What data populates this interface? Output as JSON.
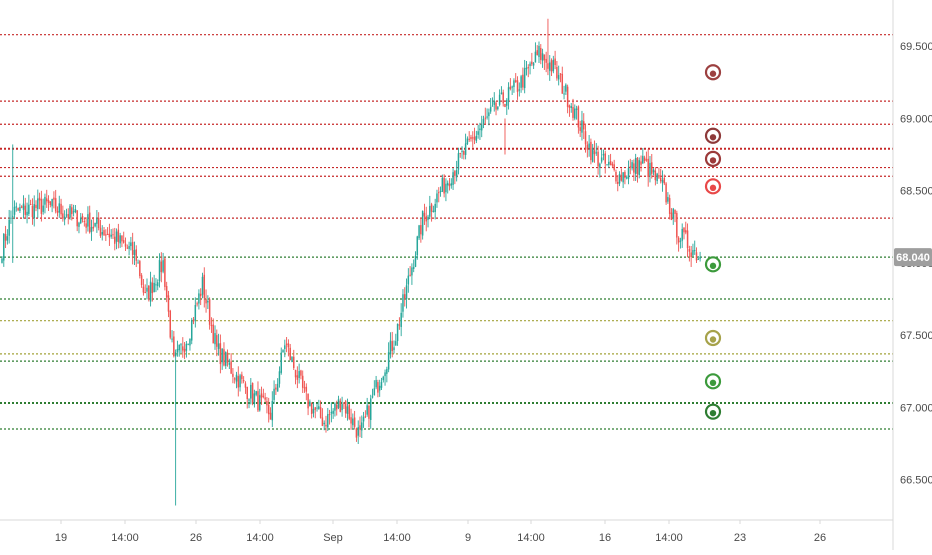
{
  "colors": {
    "up": "#26a69a",
    "up_fill": "#4caf50",
    "down": "#ef5350",
    "resistance": "#c62828",
    "support": "#2e7d32",
    "neutral": "#a3a33a",
    "price_tag_bg": "#9e9e9e",
    "axis_text": "#4a4a4a",
    "axis_line": "#d8d8d8"
  },
  "chart_data": {
    "type": "candlestick",
    "title": "",
    "xlabel": "",
    "ylabel": "",
    "ylim": [
      66.22,
      69.82
    ],
    "grid": false,
    "y_ticks": [
      "66.500",
      "67.000",
      "67.500",
      "68.000",
      "68.500",
      "69.000",
      "69.500"
    ],
    "x_ticks": [
      "19",
      "14:00",
      "26",
      "14:00",
      "Sep",
      "14:00",
      "9",
      "14:00",
      "16",
      "14:00",
      "23",
      "26"
    ],
    "current_price": "68.040",
    "anchors": [
      {
        "t": 0,
        "p": 68.1
      },
      {
        "t": 6,
        "p": 68.35
      },
      {
        "t": 25,
        "p": 68.4
      },
      {
        "t": 45,
        "p": 68.3
      },
      {
        "t": 60,
        "p": 68.2
      },
      {
        "t": 75,
        "p": 68.05
      },
      {
        "t": 80,
        "p": 67.75
      },
      {
        "t": 90,
        "p": 68.0
      },
      {
        "t": 96,
        "p": 67.3
      },
      {
        "t": 104,
        "p": 67.5
      },
      {
        "t": 112,
        "p": 67.85
      },
      {
        "t": 120,
        "p": 67.4
      },
      {
        "t": 135,
        "p": 67.15
      },
      {
        "t": 150,
        "p": 66.95
      },
      {
        "t": 158,
        "p": 67.45
      },
      {
        "t": 170,
        "p": 67.05
      },
      {
        "t": 180,
        "p": 66.9
      },
      {
        "t": 190,
        "p": 67.05
      },
      {
        "t": 200,
        "p": 66.8
      },
      {
        "t": 208,
        "p": 67.1
      },
      {
        "t": 220,
        "p": 67.5
      },
      {
        "t": 235,
        "p": 68.3
      },
      {
        "t": 255,
        "p": 68.7
      },
      {
        "t": 268,
        "p": 68.95
      },
      {
        "t": 278,
        "p": 69.1
      },
      {
        "t": 290,
        "p": 69.25
      },
      {
        "t": 300,
        "p": 69.45
      },
      {
        "t": 308,
        "p": 69.35
      },
      {
        "t": 318,
        "p": 69.1
      },
      {
        "t": 330,
        "p": 68.75
      },
      {
        "t": 345,
        "p": 68.6
      },
      {
        "t": 358,
        "p": 68.7
      },
      {
        "t": 370,
        "p": 68.5
      },
      {
        "t": 378,
        "p": 68.2
      },
      {
        "t": 390,
        "p": 68.04
      }
    ],
    "wicks": [
      {
        "t": 6,
        "high": 68.82,
        "low": 68.0
      },
      {
        "t": 97,
        "high": 67.4,
        "low": 66.32
      },
      {
        "t": 305,
        "high": 69.69,
        "low": 69.3
      },
      {
        "t": 281,
        "high": 69.0,
        "low": 68.75
      }
    ],
    "levels": [
      {
        "price": 69.58,
        "kind": "resistance",
        "marker": false
      },
      {
        "price": 69.12,
        "kind": "resistance",
        "marker": false
      },
      {
        "price": 68.96,
        "kind": "resistance",
        "marker": false
      },
      {
        "price": 68.79,
        "kind": "resistance",
        "marker": false,
        "bold": true
      },
      {
        "price": 68.66,
        "kind": "resistance",
        "marker": false
      },
      {
        "price": 68.6,
        "kind": "resistance",
        "marker": false
      },
      {
        "price": 68.31,
        "kind": "resistance",
        "marker": false
      },
      {
        "price": 68.04,
        "kind": "support",
        "marker": false
      },
      {
        "price": 67.75,
        "kind": "support",
        "marker": false
      },
      {
        "price": 67.6,
        "kind": "neutral",
        "marker": false
      },
      {
        "price": 67.37,
        "kind": "neutral",
        "marker": false
      },
      {
        "price": 67.32,
        "kind": "support",
        "marker": false
      },
      {
        "price": 67.03,
        "kind": "support",
        "marker": false,
        "bold": true
      },
      {
        "price": 66.85,
        "kind": "support",
        "marker": false
      }
    ],
    "markers": [
      {
        "price": 69.32,
        "color": "#9c4040"
      },
      {
        "price": 68.88,
        "color": "#8e3a3a"
      },
      {
        "price": 68.72,
        "color": "#9c3a3a"
      },
      {
        "price": 68.53,
        "color": "#e84848"
      },
      {
        "price": 67.99,
        "color": "#3c9a3c"
      },
      {
        "price": 67.48,
        "color": "#a6a24a"
      },
      {
        "price": 67.18,
        "color": "#3c9a3c"
      },
      {
        "price": 66.97,
        "color": "#2e7d32"
      }
    ]
  }
}
